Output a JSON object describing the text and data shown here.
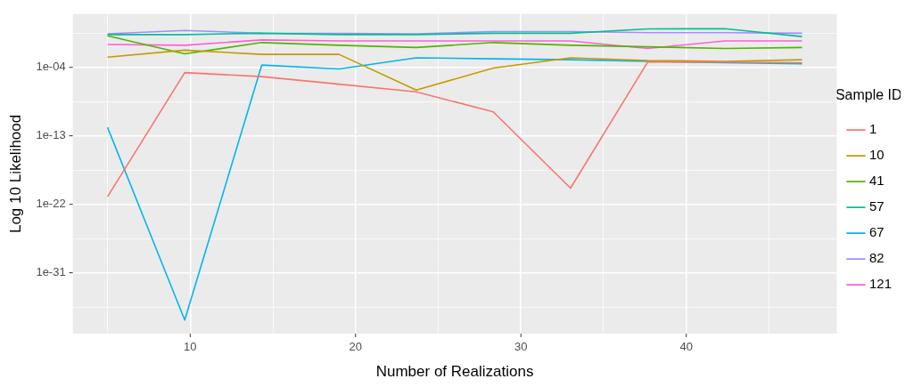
{
  "chart_data": {
    "type": "line",
    "xlabel": "Number of Realizations",
    "ylabel": "Log 10 Likelihood",
    "legend_title": "Sample ID",
    "legend": "right",
    "grid": true,
    "log": "y",
    "x": [
      5,
      9.67,
      14.33,
      19,
      23.67,
      28.33,
      33,
      37.67,
      42.33,
      47
    ],
    "xlim": [
      2.9,
      49.1
    ],
    "xticks": [
      {
        "value": 5,
        "label": null
      },
      10,
      {
        "value": 15,
        "label": null
      },
      20,
      {
        "value": 25,
        "label": null
      },
      30,
      {
        "value": 35,
        "label": null
      },
      40,
      {
        "value": 45,
        "label": null
      }
    ],
    "ylim": [
      1e-39,
      1000.0
    ],
    "yticks": [
      {
        "value": 3.162e-36,
        "label": null
      },
      {
        "value": 1e-31,
        "label": "1e-31"
      },
      {
        "value": 3.162e-27,
        "label": null
      },
      {
        "value": 1e-22,
        "label": "1e-22"
      },
      {
        "value": 3.162e-18,
        "label": null
      },
      {
        "value": 1e-13,
        "label": "1e-13"
      },
      {
        "value": 3.162e-09,
        "label": null
      },
      {
        "value": 0.0001,
        "label": "1e-04"
      },
      {
        "value": 3.162,
        "label": null
      }
    ],
    "series": [
      {
        "name": "1",
        "color": "#f8766d",
        "values": [
          1e-21,
          2e-05,
          6e-06,
          6e-07,
          6e-08,
          1.4e-10,
          1.3e-20,
          0.0005,
          0.0005,
          0.0004
        ]
      },
      {
        "name": "10",
        "color": "#c49a00",
        "values": [
          0.0022,
          0.018,
          0.005,
          0.005,
          1e-07,
          8e-05,
          0.0018,
          0.0008,
          0.0006,
          0.001
        ]
      },
      {
        "name": "41",
        "color": "#53b400",
        "values": [
          1.4,
          0.006,
          0.18,
          0.08,
          0.04,
          0.18,
          0.08,
          0.05,
          0.03,
          0.04
        ]
      },
      {
        "name": "57",
        "color": "#00c094",
        "values": [
          2,
          2,
          3,
          2,
          2,
          3,
          3,
          11,
          12,
          1.1
        ]
      },
      {
        "name": "67",
        "color": "#00b6eb",
        "values": [
          1.3e-12,
          6e-38,
          0.0002,
          6e-05,
          0.0018,
          0.0013,
          0.001,
          0.0006,
          0.0004,
          0.0003
        ]
      },
      {
        "name": "82",
        "color": "#a58aff",
        "values": [
          2.5,
          7,
          3,
          2.8,
          2.5,
          5,
          5,
          3.5,
          3.5,
          3
        ]
      },
      {
        "name": "121",
        "color": "#fb61d7",
        "values": [
          0.1,
          0.08,
          0.4,
          0.3,
          0.3,
          0.3,
          0.3,
          0.03,
          0.3,
          0.3
        ]
      }
    ]
  }
}
